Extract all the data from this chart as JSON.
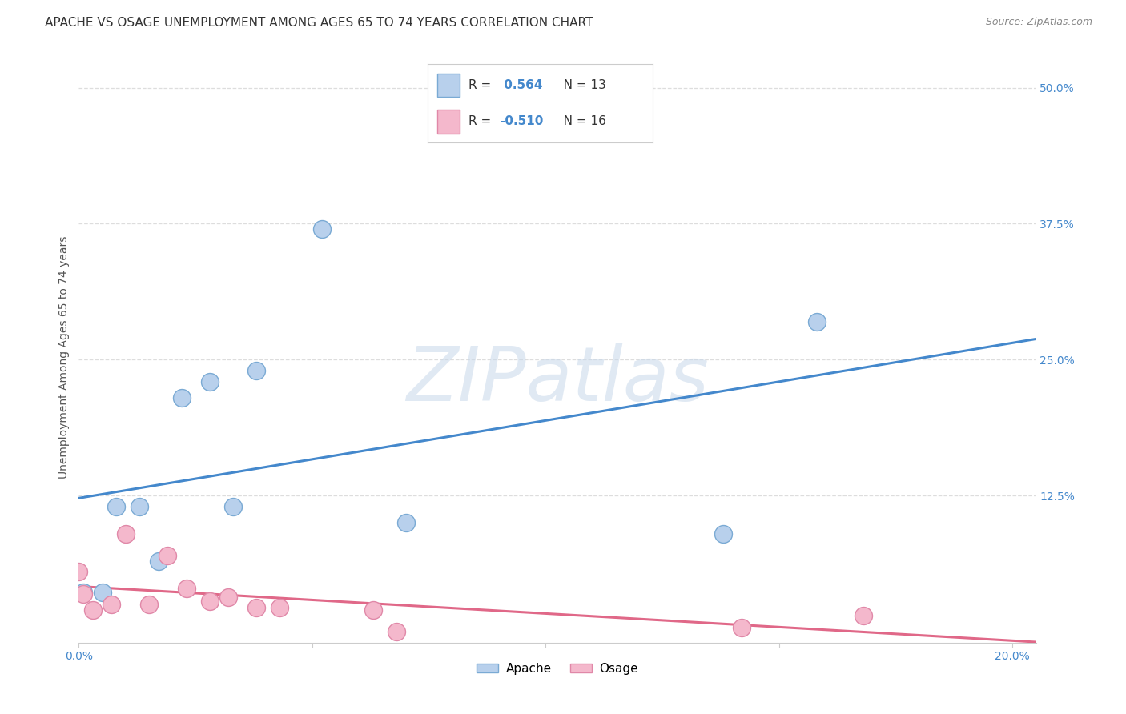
{
  "title": "APACHE VS OSAGE UNEMPLOYMENT AMONG AGES 65 TO 74 YEARS CORRELATION CHART",
  "source": "Source: ZipAtlas.com",
  "ylabel": "Unemployment Among Ages 65 to 74 years",
  "xlim": [
    0.0,
    0.205
  ],
  "ylim": [
    -0.01,
    0.515
  ],
  "ytick_values": [
    0.125,
    0.25,
    0.375,
    0.5
  ],
  "ytick_labels": [
    "12.5%",
    "25.0%",
    "37.5%",
    "50.0%"
  ],
  "xtick_values": [
    0.0,
    0.05,
    0.1,
    0.15,
    0.2
  ],
  "xtick_labels": [
    "0.0%",
    "",
    "",
    "",
    "20.0%"
  ],
  "apache_color": "#b8d0ec",
  "apache_edge_color": "#7aaad4",
  "apache_line_color": "#4488cc",
  "osage_color": "#f4b8cc",
  "osage_edge_color": "#e088a8",
  "osage_line_color": "#e06888",
  "apache_R": 0.564,
  "apache_N": 13,
  "osage_R": -0.51,
  "osage_N": 16,
  "apache_x": [
    0.001,
    0.005,
    0.008,
    0.013,
    0.017,
    0.022,
    0.028,
    0.033,
    0.038,
    0.052,
    0.07,
    0.138,
    0.158
  ],
  "apache_y": [
    0.036,
    0.036,
    0.115,
    0.115,
    0.065,
    0.215,
    0.23,
    0.115,
    0.24,
    0.37,
    0.1,
    0.09,
    0.285
  ],
  "osage_x": [
    0.0,
    0.001,
    0.003,
    0.007,
    0.01,
    0.015,
    0.019,
    0.023,
    0.028,
    0.032,
    0.038,
    0.043,
    0.063,
    0.068,
    0.142,
    0.168
  ],
  "osage_y": [
    0.055,
    0.035,
    0.02,
    0.025,
    0.09,
    0.025,
    0.07,
    0.04,
    0.028,
    0.032,
    0.022,
    0.022,
    0.02,
    0.0,
    0.004,
    0.015
  ],
  "watermark_text": "ZIPatlas",
  "watermark_color": "#c8d8ea",
  "grid_color": "#dddddd",
  "bg_color": "#ffffff",
  "title_fontsize": 11,
  "axis_label_fontsize": 10,
  "tick_fontsize": 10,
  "scatter_size": 250,
  "legend_apache_label": "Apache",
  "legend_osage_label": "Osage",
  "tick_color": "#4488cc",
  "axis_text_color": "#555555",
  "legend_box_color": "#f0f4f8",
  "legend_edge_color": "#cccccc"
}
